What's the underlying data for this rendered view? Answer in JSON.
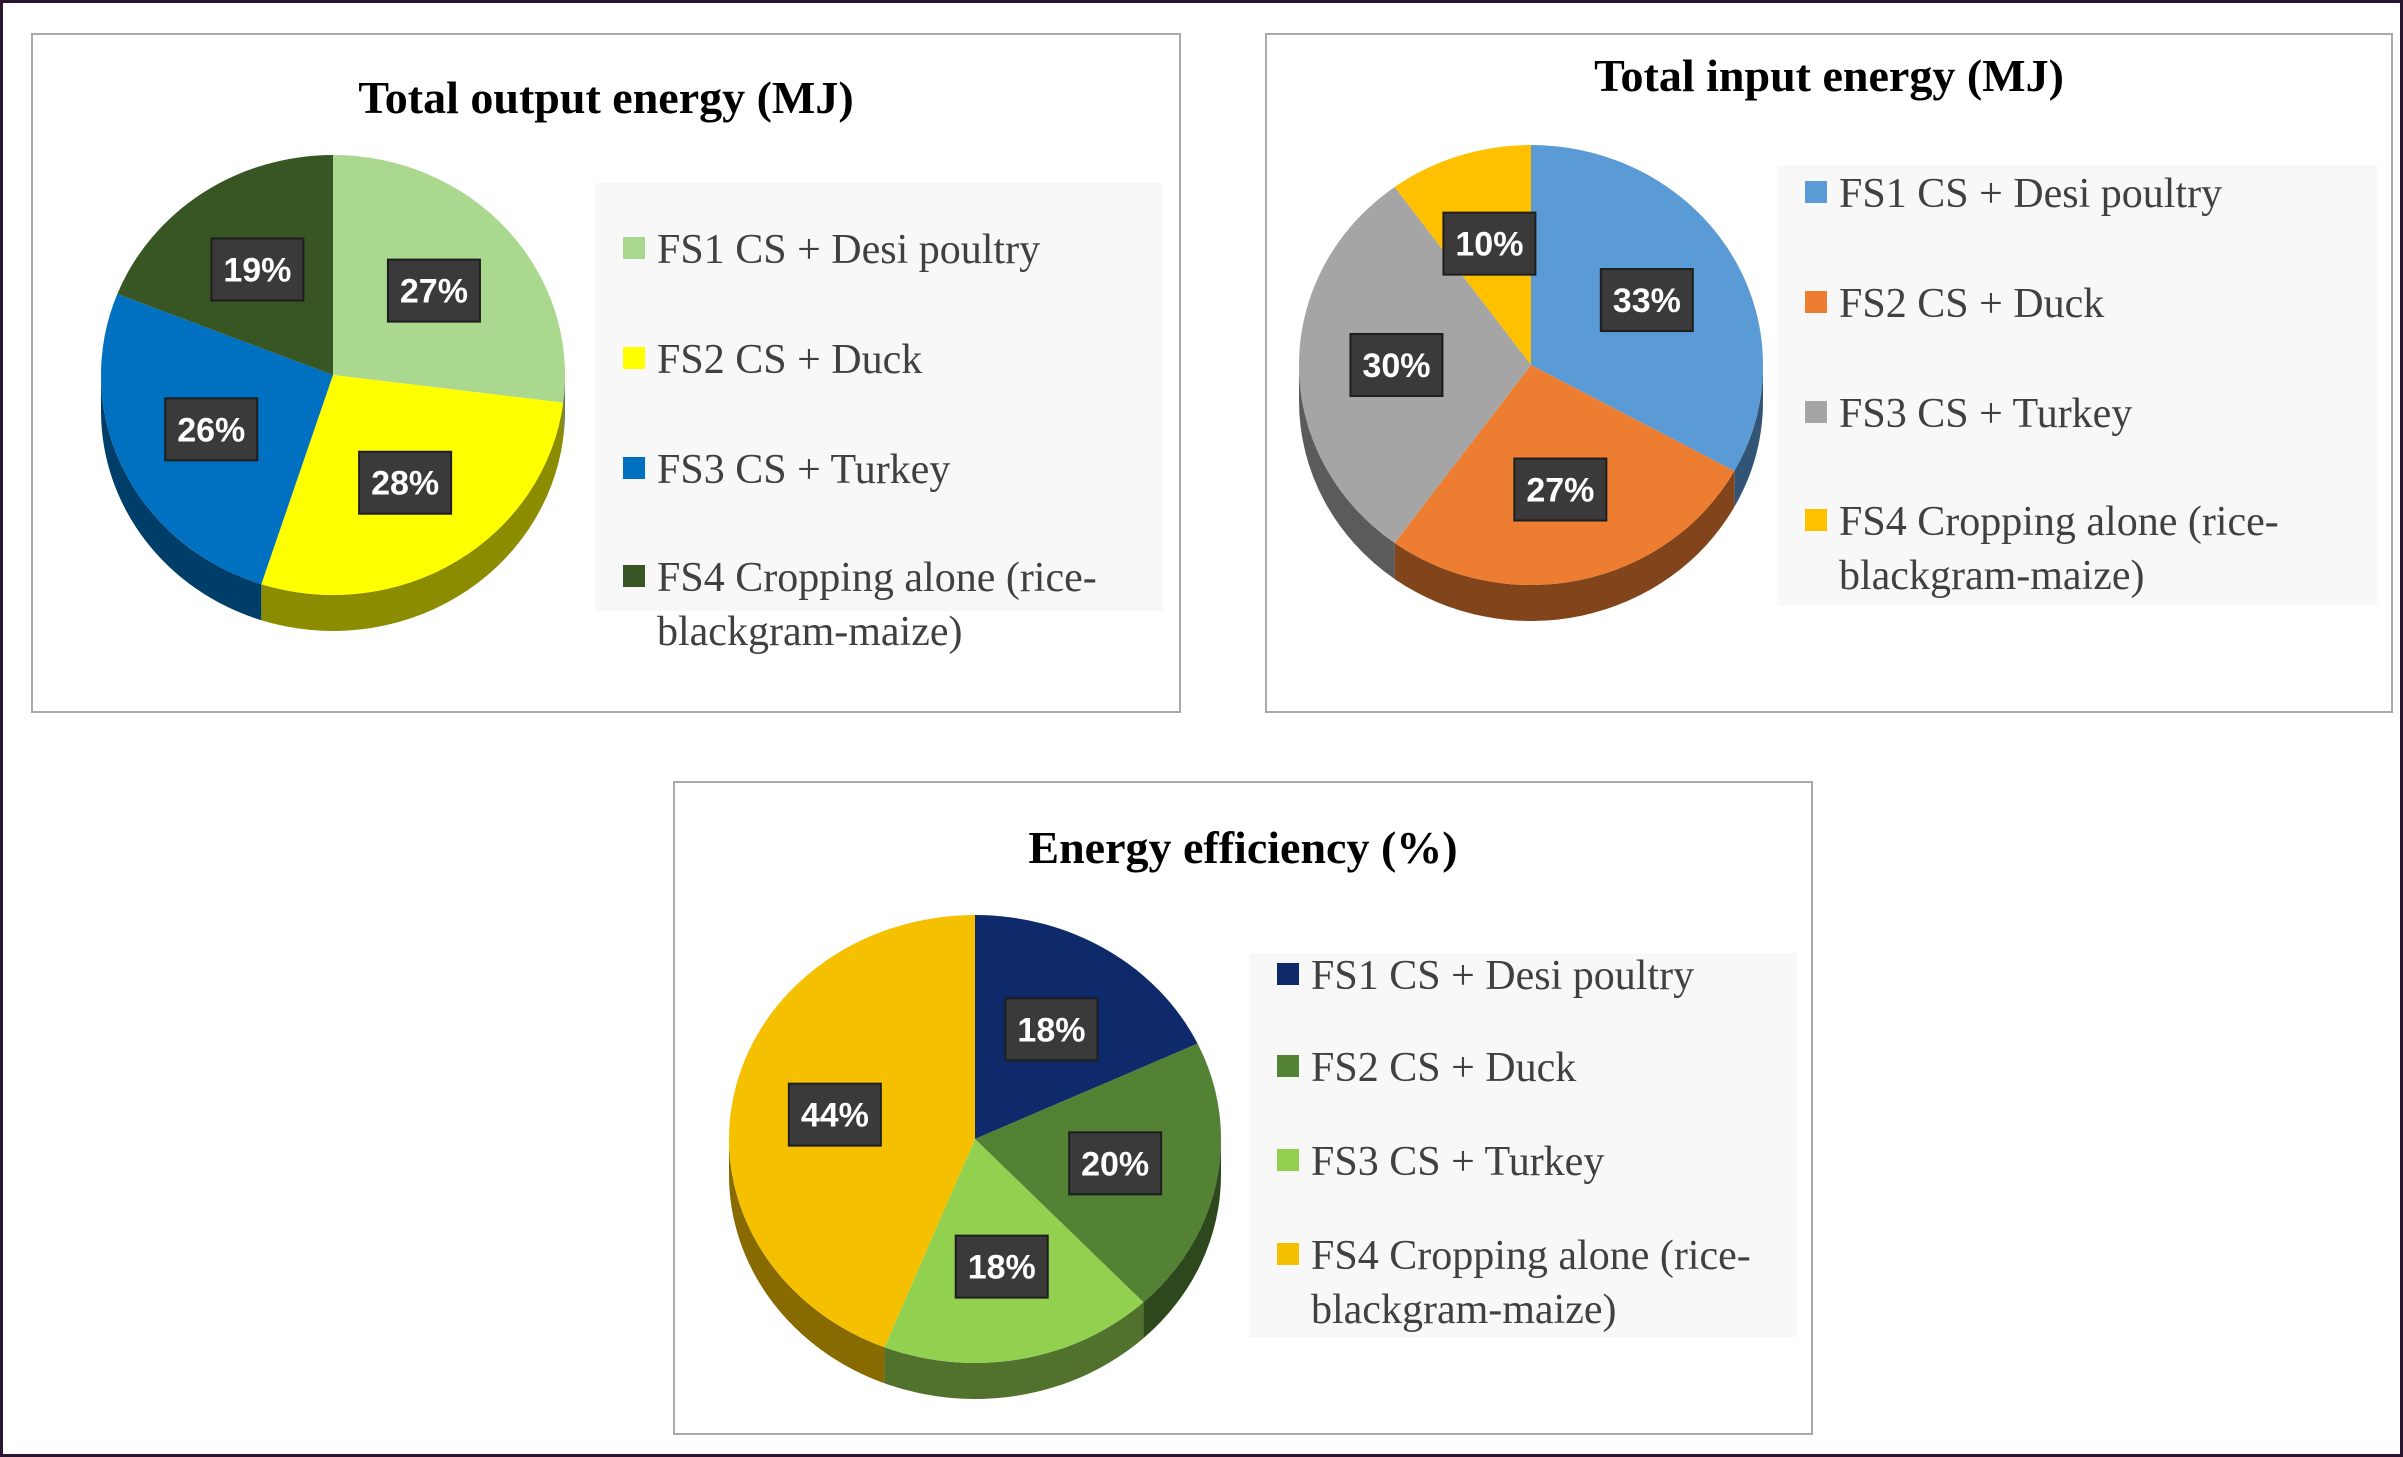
{
  "chart_data": [
    {
      "type": "pie",
      "title": "Total output energy (MJ)",
      "categories": [
        "FS1 CS + Desi poultry",
        "FS2 CS + Duck",
        "FS3 CS + Turkey",
        "FS4 Cropping alone (rice-blackgram-maize)"
      ],
      "values": [
        27,
        28,
        26,
        19
      ],
      "labels": [
        "27%",
        "28%",
        "26%",
        "19%"
      ],
      "colors": [
        "#a9d88e",
        "#ffff00",
        "#0070c0",
        "#375623"
      ],
      "legend": "right"
    },
    {
      "type": "pie",
      "title": "Total input energy (MJ)",
      "categories": [
        "FS1 CS + Desi poultry",
        "FS2 CS + Duck",
        "FS3 CS + Turkey",
        "FS4 Cropping alone (rice-blackgram-maize)"
      ],
      "values": [
        33,
        27,
        30,
        10
      ],
      "labels": [
        "33%",
        "27%",
        "30%",
        "10%"
      ],
      "colors": [
        "#5b9bd5",
        "#ed7d31",
        "#a5a5a5",
        "#ffc000"
      ],
      "legend": "right"
    },
    {
      "type": "pie",
      "title": "Energy efficiency (%)",
      "categories": [
        "FS1 CS + Desi poultry",
        "FS2 CS + Duck",
        "FS3 CS + Turkey",
        "FS4 Cropping alone (rice-blackgram-maize)"
      ],
      "values": [
        18,
        20,
        18,
        44
      ],
      "labels": [
        "18%",
        "20%",
        "18%",
        "44%"
      ],
      "colors": [
        "#0f2a6b",
        "#548235",
        "#92d050",
        "#f5c000"
      ],
      "legend": "right"
    }
  ]
}
